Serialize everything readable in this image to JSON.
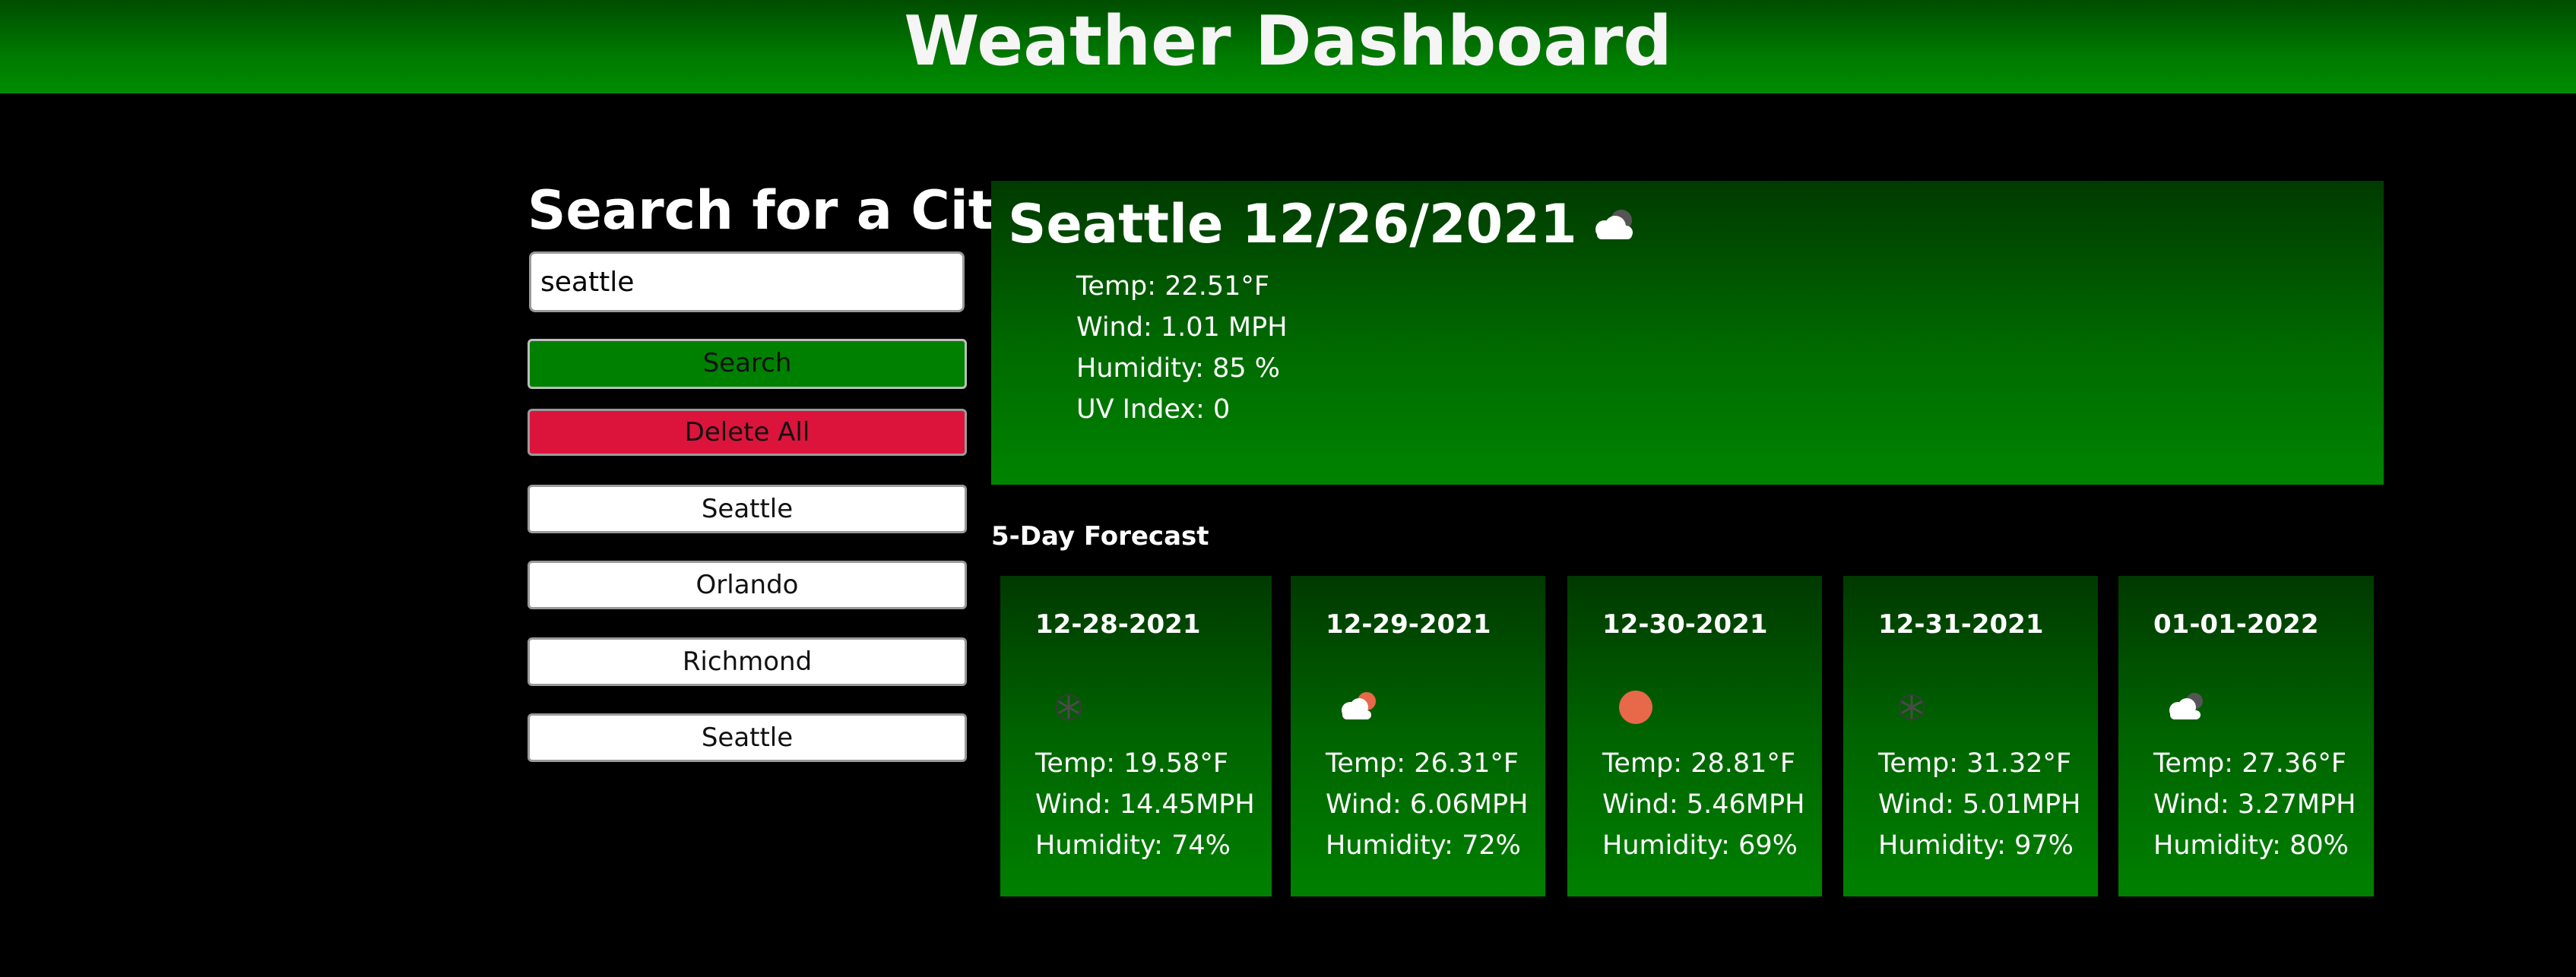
{
  "header": {
    "title": "Weather Dashboard"
  },
  "search": {
    "heading": "Search for a City:",
    "input_value": "seattle",
    "search_label": "Search",
    "delete_label": "Delete All"
  },
  "history": [
    "Seattle",
    "Orlando",
    "Richmond",
    "Seattle"
  ],
  "current": {
    "title": "Seattle 12/26/2021",
    "icon": "cloud-night-icon",
    "temp": "Temp: 22.51°F",
    "wind": "Wind: 1.01 MPH",
    "humidity": "Humidity: 85 %",
    "uv": "UV Index: 0"
  },
  "forecast": {
    "label": "5-Day Forecast",
    "days": [
      {
        "date": "12-28-2021",
        "icon": "snow-icon",
        "temp": "Temp: 19.58°F",
        "wind": "Wind: 14.45MPH",
        "humidity": "Humidity: 74%"
      },
      {
        "date": "12-29-2021",
        "icon": "cloud-sun-icon",
        "temp": "Temp: 26.31°F",
        "wind": "Wind: 6.06MPH",
        "humidity": "Humidity: 72%"
      },
      {
        "date": "12-30-2021",
        "icon": "sun-icon",
        "temp": "Temp: 28.81°F",
        "wind": "Wind: 5.46MPH",
        "humidity": "Humidity: 69%"
      },
      {
        "date": "12-31-2021",
        "icon": "snow-icon",
        "temp": "Temp: 31.32°F",
        "wind": "Wind: 5.01MPH",
        "humidity": "Humidity: 97%"
      },
      {
        "date": "01-01-2022",
        "icon": "cloud-night-icon",
        "temp": "Temp: 27.36°F",
        "wind": "Wind: 3.27MPH",
        "humidity": "Humidity: 80%"
      }
    ]
  },
  "colors": {
    "header_green": "#008000",
    "search_button": "#008000",
    "delete_button": "#dc143c",
    "sun": "#e8684a"
  }
}
